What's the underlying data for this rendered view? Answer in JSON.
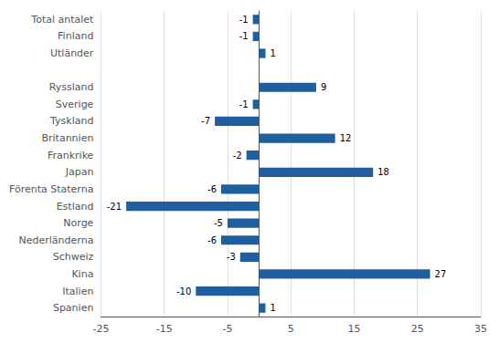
{
  "chart_data": {
    "type": "bar",
    "orientation": "horizontal",
    "categories": [
      "Spanien",
      "Italien",
      "Kina",
      "Schweiz",
      "Nederländerna",
      "Norge",
      "Estland",
      "Förenta Staterna",
      "Japan",
      "Frankrike",
      "Britannien",
      "Tyskland",
      "Sverige",
      "Ryssland",
      null,
      "Utländer",
      "Finland",
      "Total antalet"
    ],
    "values": [
      1,
      -10,
      27,
      -3,
      -6,
      -5,
      -21,
      -6,
      18,
      -2,
      12,
      -7,
      -1,
      9,
      null,
      1,
      -1,
      -1
    ],
    "color": "#1F5F9F",
    "xlim": [
      -25,
      35
    ],
    "xticks": [
      -25,
      -15,
      -5,
      5,
      15,
      25,
      35
    ],
    "grid": true,
    "data_labels": true
  }
}
